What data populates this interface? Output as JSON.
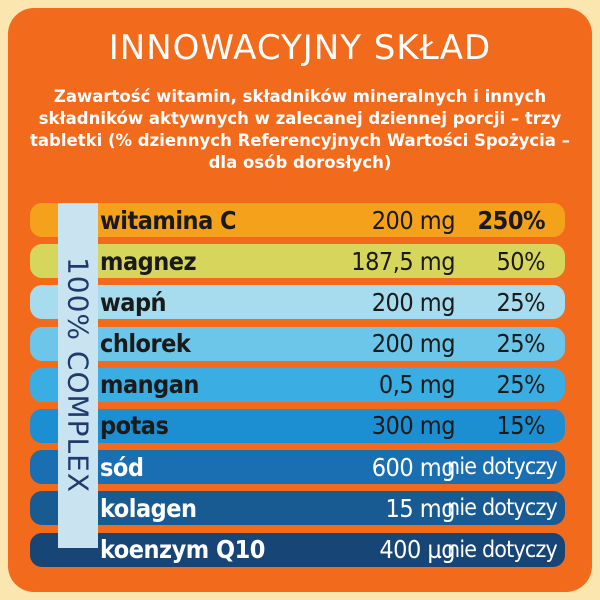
{
  "title": "INNOWACYJNY SKŁAD",
  "subtitle": "Zawartość witamin, składników mineralnych i innych składników aktywnych w zalecanej dziennej porcji – trzy tabletki (% dziennych Referencyjnych Wartości Spożycia – dla osób dorosłych)",
  "complex_label": "100% COMPLEX",
  "colors": {
    "background": "#f26b1d",
    "title_text": "#ffffff"
  },
  "rows": [
    {
      "name": "witamina C",
      "amount": "200 mg",
      "pct": "250%",
      "color": "#f4a21c"
    },
    {
      "name": "magnez",
      "amount": "187,5 mg",
      "pct": "50%",
      "color": "#d7d65c"
    },
    {
      "name": "wapń",
      "amount": "200 mg",
      "pct": "25%",
      "color": "#a7dcef"
    },
    {
      "name": "chlorek",
      "amount": "200 mg",
      "pct": "25%",
      "color": "#6cc6ea"
    },
    {
      "name": "mangan",
      "amount": "0,5 mg",
      "pct": "25%",
      "color": "#3aaee3"
    },
    {
      "name": "potas",
      "amount": "300 mg",
      "pct": "15%",
      "color": "#1c8fd2"
    },
    {
      "name": "sód",
      "amount": "600 mg",
      "pct": "nie dotyczy",
      "color": "#1a6fb2"
    },
    {
      "name": "kolagen",
      "amount": "15 mg",
      "pct": "nie dotyczy",
      "color": "#185b93"
    },
    {
      "name": "koenzym Q10",
      "amount": "400 µg",
      "pct": "nie dotyczy",
      "color": "#174575"
    }
  ]
}
